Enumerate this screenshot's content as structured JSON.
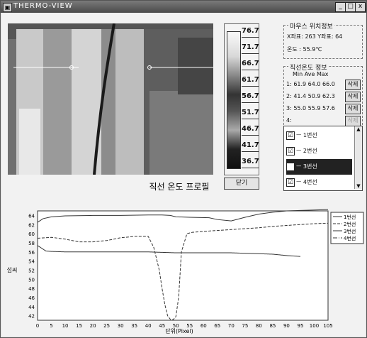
{
  "window": {
    "title": "THERMO-VIEW",
    "min": "_",
    "max": "□",
    "close": "x"
  },
  "scale": {
    "labels": [
      "76.7",
      "71.7",
      "66.7",
      "61.7",
      "56.7",
      "51.7",
      "46.7",
      "41.7",
      "36.7"
    ],
    "close_label": "닫기"
  },
  "mouse_info": {
    "title": "마우스 위치정보",
    "coords": "X좌표: 263  Y좌표: 64",
    "temp": "온도 : 55.9℃"
  },
  "line_temp": {
    "title": "직선온도 정보",
    "header": "Min  Ave  Max",
    "rows": [
      {
        "label": "1:  61.9  64.0  66.0",
        "delete": "삭제"
      },
      {
        "label": "2:  41.4  50.9  62.3",
        "delete": "삭제"
      },
      {
        "label": "3:  55.0  55.9  57.6",
        "delete": "삭제"
      },
      {
        "label": "4:",
        "delete": "삭제"
      }
    ]
  },
  "lines_list": [
    {
      "check": "☑",
      "label": "ㅡ 1번선"
    },
    {
      "check": "☑",
      "label": "ㅡ 2번선"
    },
    {
      "check": "☑",
      "label": "ㅡ 3번선"
    },
    {
      "check": "☑",
      "label": "ㅡ 4번선"
    }
  ],
  "chart_data": {
    "type": "line",
    "title": "직선 온도 프로필",
    "xlabel": "단위(Pixel)",
    "ylabel": "섭씨",
    "xlim": [
      0,
      105
    ],
    "ylim": [
      41,
      65
    ],
    "xticks": [
      0,
      5,
      10,
      15,
      20,
      25,
      30,
      35,
      40,
      45,
      50,
      55,
      60,
      65,
      70,
      75,
      80,
      85,
      90,
      95,
      100,
      105
    ],
    "yticks": [
      42,
      44,
      46,
      48,
      50,
      52,
      54,
      56,
      58,
      60,
      62,
      64
    ],
    "grid": true,
    "legend_position": "right",
    "series": [
      {
        "name": "1번선",
        "color": "#333333",
        "x": [
          0,
          2,
          5,
          10,
          20,
          30,
          40,
          45,
          48,
          50,
          55,
          62,
          65,
          70,
          75,
          80,
          85,
          90,
          95,
          100,
          105
        ],
        "y": [
          62.5,
          63.3,
          63.7,
          63.9,
          64.0,
          64.0,
          64.1,
          64.1,
          64.0,
          63.7,
          63.6,
          63.5,
          63.1,
          62.8,
          63.6,
          64.3,
          64.7,
          65.0,
          65.1,
          65.2,
          65.3
        ]
      },
      {
        "name": "2번선",
        "color": "#333333",
        "x": [
          0,
          5,
          10,
          15,
          20,
          25,
          30,
          35,
          40,
          42,
          44,
          45,
          46,
          47,
          48,
          49,
          50,
          51,
          52,
          54,
          56,
          60,
          65,
          70,
          75,
          80,
          85,
          90,
          95,
          100,
          105
        ],
        "y": [
          59.0,
          59.2,
          58.8,
          58.2,
          58.2,
          58.5,
          59.1,
          59.4,
          59.4,
          57.0,
          52.0,
          48.0,
          44.5,
          42.0,
          41.2,
          41.1,
          41.8,
          46.0,
          56.0,
          60.0,
          60.3,
          60.5,
          60.7,
          60.9,
          61.1,
          61.3,
          61.6,
          61.8,
          62.0,
          62.2,
          62.3
        ]
      },
      {
        "name": "3번선",
        "color": "#333333",
        "x": [
          0,
          3,
          5,
          10,
          20,
          30,
          40,
          50,
          60,
          70,
          80,
          85,
          90,
          95
        ],
        "y": [
          57.4,
          56.2,
          56.1,
          56.0,
          56.0,
          56.0,
          56.0,
          55.8,
          55.8,
          55.8,
          55.6,
          55.5,
          55.2,
          55.0
        ]
      },
      {
        "name": "4번선",
        "color": "#333333",
        "x": [],
        "y": []
      }
    ]
  }
}
